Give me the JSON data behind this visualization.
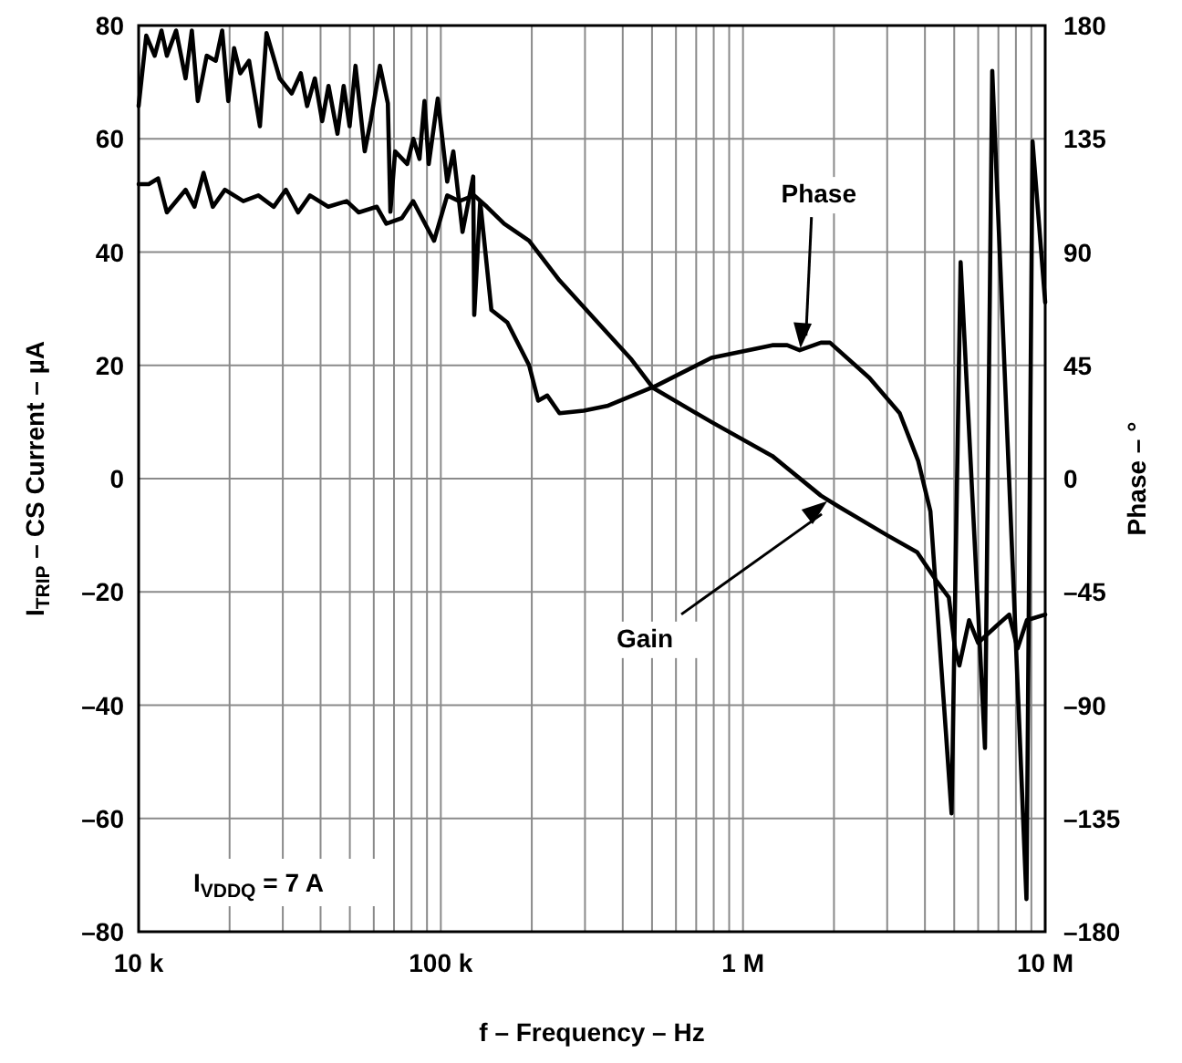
{
  "chart_data": {
    "type": "line",
    "xlabel": "f – Frequency – Hz",
    "ylabel": "I$_{TRIP}$ – CS Current – µA",
    "y2label": "Phase – °",
    "log": "x",
    "grid": true,
    "marker": "none",
    "line_style": "solid",
    "xlim": [
      10000,
      10000000
    ],
    "xticks": [
      {
        "value": 10000,
        "label": "10 k"
      },
      {
        "value": 100000,
        "label": "100 k"
      },
      {
        "value": 1000000,
        "label": "1 M"
      },
      {
        "value": 10000000,
        "label": "10 M"
      }
    ],
    "ylim": [
      -80,
      80
    ],
    "yticks": [
      {
        "value": -80,
        "label": "–80"
      },
      {
        "value": -60,
        "label": "–60"
      },
      {
        "value": -40,
        "label": "–40"
      },
      {
        "value": -20,
        "label": "–20"
      },
      0,
      20,
      40,
      60,
      80
    ],
    "y2lim": [
      -180,
      180
    ],
    "y2ticks": [
      {
        "value": -180,
        "label": "–180"
      },
      {
        "value": -135,
        "label": "–135"
      },
      {
        "value": -90,
        "label": "–90"
      },
      {
        "value": -45,
        "label": "–45"
      },
      0,
      45,
      90,
      135,
      180
    ],
    "series": [
      {
        "color": "#000000",
        "x": [
          10000,
          10800,
          11600,
          12400,
          14300,
          15300,
          16400,
          17600,
          19300,
          22200,
          24900,
          28000,
          30700,
          33700,
          36900,
          42400,
          48800,
          53500,
          61400,
          66000,
          74300,
          81000,
          95000,
          105000,
          115000,
          129000,
          142000,
          162000,
          196000,
          247000,
          325000,
          428000,
          504000,
          786000,
          1250000,
          1810000,
          2080000,
          3000000,
          3770000,
          4360000,
          4800000,
          5030000,
          5200000,
          5600000,
          6000000,
          6900000,
          7600000,
          8100000,
          8700000,
          10000000
        ],
        "values": [
          52,
          52,
          53,
          47,
          51,
          48,
          54,
          48,
          51,
          49,
          50,
          48,
          51,
          47,
          50,
          48,
          49,
          47,
          48,
          45,
          46,
          49,
          42,
          50,
          49,
          50,
          48,
          45,
          42,
          35,
          28,
          21,
          16,
          10,
          4,
          -3,
          -5,
          -10,
          -13,
          -18,
          -21,
          -30,
          -33,
          -25,
          -29,
          -26,
          -24,
          -30,
          -25,
          -24
        ]
      },
      {
        "color": "#000000",
        "axis": "y2",
        "x": [
          10000,
          10600,
          11300,
          11900,
          12400,
          13300,
          14300,
          15000,
          15700,
          16800,
          18000,
          18900,
          19800,
          20700,
          21700,
          23200,
          25200,
          26500,
          29300,
          32100,
          34400,
          36100,
          38300,
          40500,
          42500,
          45500,
          47700,
          49900,
          52200,
          56000,
          58600,
          62900,
          66800,
          68100,
          70600,
          77400,
          81100,
          85000,
          88300,
          91200,
          97700,
          105000,
          110000,
          118000,
          128000,
          129000,
          135000,
          147000,
          166000,
          196000,
          210000,
          225000,
          247000,
          297000,
          358000,
          518000,
          786000,
          1250000,
          1400000,
          1540000,
          1810000,
          1940000,
          2620000,
          3300000,
          3800000,
          4170000,
          4900000,
          5250000,
          6320000,
          6680000,
          8670000,
          9080000,
          10000000
        ],
        "values": [
          148,
          176,
          168,
          178,
          168,
          178,
          159,
          178,
          150,
          168,
          166,
          178,
          150,
          171,
          161,
          166,
          140,
          177,
          159,
          153,
          161,
          148,
          159,
          142,
          156,
          137,
          156,
          140,
          164,
          130,
          142,
          164,
          149,
          106,
          130,
          125,
          135,
          127,
          150,
          125,
          151,
          118,
          130,
          98,
          120,
          65,
          110,
          67,
          62,
          45,
          31,
          33,
          26,
          27,
          29,
          37,
          48,
          53,
          53,
          51,
          54,
          54,
          40,
          26,
          7,
          -13,
          -133,
          86,
          -107,
          162,
          -167,
          134,
          70
        ]
      }
    ],
    "annotations": [
      {
        "text": "Phase",
        "x": 1550000,
        "y": 23
      },
      {
        "text": "Gain",
        "x": 1900000,
        "y": -4
      },
      "I$_{VDDQ}$ = 7 A"
    ]
  }
}
